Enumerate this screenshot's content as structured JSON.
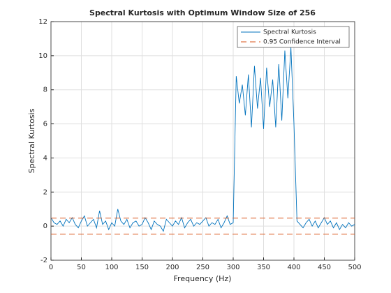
{
  "chart_data": {
    "type": "line",
    "title": "Spectral Kurtosis with Optimum Window Size of 256",
    "xlabel": "Frequency (Hz)",
    "ylabel": "Spectral Kurtosis",
    "x": [
      0,
      5,
      10,
      15,
      20,
      25,
      30,
      35,
      40,
      45,
      50,
      55,
      60,
      65,
      70,
      75,
      80,
      85,
      90,
      95,
      100,
      105,
      110,
      115,
      120,
      125,
      130,
      135,
      140,
      145,
      150,
      155,
      160,
      165,
      170,
      175,
      180,
      185,
      190,
      195,
      200,
      205,
      210,
      215,
      220,
      225,
      230,
      235,
      240,
      245,
      250,
      255,
      260,
      265,
      270,
      275,
      280,
      285,
      290,
      295,
      300,
      305,
      310,
      315,
      320,
      325,
      330,
      335,
      340,
      345,
      350,
      355,
      360,
      365,
      370,
      375,
      380,
      385,
      390,
      395,
      400,
      405,
      410,
      415,
      420,
      425,
      430,
      435,
      440,
      445,
      450,
      455,
      460,
      465,
      470,
      475,
      480,
      485,
      490,
      495,
      500
    ],
    "series": [
      {
        "name": "Spectral Kurtosis",
        "color": "#0072bd",
        "values": [
          0.5,
          0.2,
          0.1,
          0.3,
          0.0,
          0.4,
          0.2,
          0.5,
          0.1,
          -0.1,
          0.3,
          0.6,
          0.0,
          0.2,
          0.4,
          -0.1,
          0.9,
          0.1,
          0.3,
          -0.2,
          0.2,
          0.0,
          1.0,
          0.3,
          0.1,
          0.4,
          -0.1,
          0.2,
          0.3,
          0.0,
          0.1,
          0.5,
          0.2,
          -0.2,
          0.3,
          0.1,
          0.0,
          -0.3,
          0.4,
          0.2,
          0.0,
          0.3,
          0.1,
          0.5,
          -0.1,
          0.2,
          0.4,
          0.0,
          0.2,
          0.1,
          0.3,
          0.5,
          0.0,
          0.2,
          0.1,
          0.4,
          -0.1,
          0.2,
          0.6,
          0.1,
          0.2,
          8.8,
          7.2,
          8.3,
          6.5,
          8.9,
          5.8,
          9.4,
          6.9,
          8.7,
          5.7,
          9.3,
          7.0,
          8.6,
          5.8,
          9.5,
          6.2,
          10.3,
          7.5,
          10.5,
          6.0,
          0.3,
          0.1,
          -0.1,
          0.2,
          0.4,
          0.0,
          0.3,
          -0.1,
          0.2,
          0.5,
          0.1,
          0.3,
          -0.1,
          0.2,
          -0.2,
          0.1,
          -0.1,
          0.2,
          0.0,
          0.1
        ]
      }
    ],
    "confidence_interval": {
      "name": "0.95 Confidence Interval",
      "color": "#d95319",
      "values": [
        0.47,
        -0.47
      ]
    },
    "xlim": [
      0,
      500
    ],
    "xticks": [
      0,
      50,
      100,
      150,
      200,
      250,
      300,
      350,
      400,
      450,
      500
    ],
    "ylim": [
      -2,
      12
    ],
    "yticks": [
      -2,
      0,
      2,
      4,
      6,
      8,
      10,
      12
    ],
    "grid": true,
    "legend": "northeast"
  }
}
